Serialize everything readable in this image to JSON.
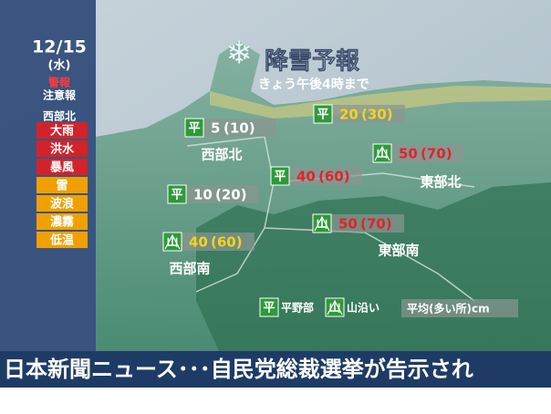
{
  "sidebar": {
    "date": "12/15",
    "weekday": "(水)",
    "warning": "警報",
    "advisory": "注意報",
    "region": "西部北",
    "alerts": [
      {
        "label": "大雨",
        "color": "#d2232a"
      },
      {
        "label": "洪水",
        "color": "#d2232a"
      },
      {
        "label": "暴風",
        "color": "#d2232a"
      },
      {
        "label": "雷",
        "color": "#f0a000"
      },
      {
        "label": "波浪",
        "color": "#f0a000"
      },
      {
        "label": "濃霧",
        "color": "#f0a000"
      },
      {
        "label": "低温",
        "color": "#f0a000"
      }
    ]
  },
  "title": "降雪予報",
  "subtitle": "きょう午後4時まで",
  "forecasts": [
    {
      "icon": "平",
      "amount": "5",
      "peak": "(10)",
      "color": "#ffffff"
    },
    {
      "icon": "平",
      "amount": "20",
      "peak": "(30)",
      "color": "#f7d21c"
    },
    {
      "icon": "山",
      "amount": "50",
      "peak": "(70)",
      "color": "#e8202a"
    },
    {
      "icon": "平",
      "amount": "40",
      "peak": "(60)",
      "color": "#e8202a"
    },
    {
      "icon": "平",
      "amount": "10",
      "peak": "(20)",
      "color": "#ffffff"
    },
    {
      "icon": "山",
      "amount": "50",
      "peak": "(70)",
      "color": "#e8202a"
    },
    {
      "icon": "山",
      "amount": "40",
      "peak": "(60)",
      "color": "#f7d21c"
    }
  ],
  "regions": [
    "西部北",
    "東部北",
    "東部南",
    "西部南"
  ],
  "legend": {
    "plain_icon": "平",
    "plain": "平野部",
    "mountain_icon": "山",
    "mountain": "山沿い",
    "unit": "平均(多い所)cm"
  },
  "ticker": "日本新聞ニュース･･･自民党総裁選挙が告示され"
}
